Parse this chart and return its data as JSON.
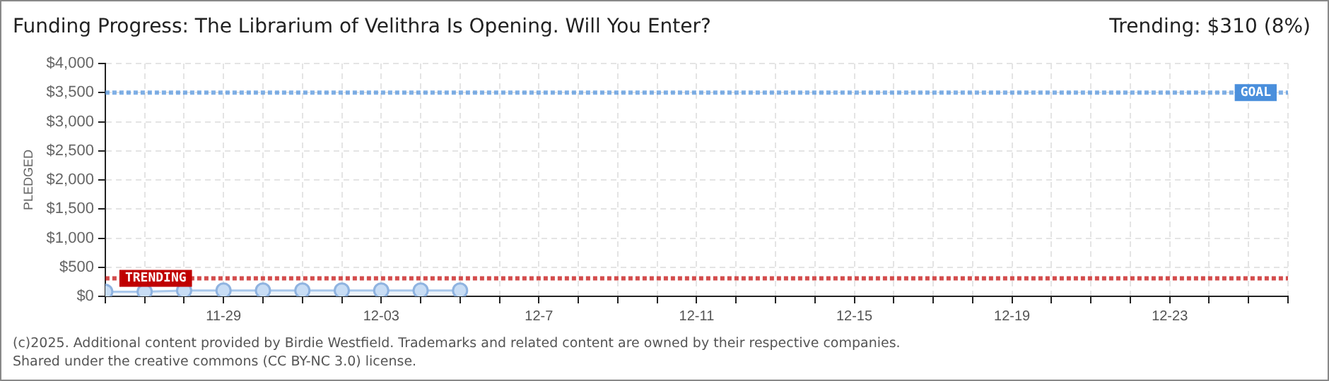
{
  "chart_data": {
    "type": "area",
    "title": "Funding Progress: The Librarium of Velithra Is Opening. Will You Enter?",
    "subtitle": "Trending: $310 (8%)",
    "ylabel": "PLEDGED",
    "annotations": [
      "(c)2025. Additional content provided by Birdie Westfield. Trademarks and related content are owned by their respective companies.",
      "Shared under the creative commons (CC BY-NC 3.0) license."
    ],
    "x": [
      "--11-26",
      "--11-27",
      "--11-28",
      "--11-29",
      "--11-30",
      "--12-01",
      "--12-02",
      "--12-03",
      "--12-04",
      "--12-05"
    ],
    "series": [
      {
        "color": "#a9c8ec",
        "values": [
          80,
          80,
          100,
          100,
          100,
          100,
          100,
          100,
          100,
          100
        ]
      }
    ],
    "xlim": [
      "--11-26",
      "--12-26"
    ],
    "xticks": [
      {
        "value": "--11-26",
        "label": null
      },
      {
        "value": "--11-27",
        "label": null
      },
      {
        "value": "--11-28",
        "label": null
      },
      {
        "value": "--11-29",
        "label": "11-29"
      },
      {
        "value": "--11-30",
        "label": null
      },
      {
        "value": "--12-01",
        "label": null
      },
      {
        "value": "--12-02",
        "label": null
      },
      {
        "value": "--12-03",
        "label": "12-03"
      },
      {
        "value": "--12-04",
        "label": null
      },
      {
        "value": "--12-05",
        "label": null
      },
      {
        "value": "--12-06",
        "label": null
      },
      {
        "value": "--12-07",
        "label": "12-7"
      },
      {
        "value": "--12-08",
        "label": null
      },
      {
        "value": "--12-09",
        "label": null
      },
      {
        "value": "--12-10",
        "label": null
      },
      {
        "value": "--12-11",
        "label": "12-11"
      },
      {
        "value": "--12-12",
        "label": null
      },
      {
        "value": "--12-13",
        "label": null
      },
      {
        "value": "--12-14",
        "label": null
      },
      {
        "value": "--12-15",
        "label": "12-15"
      },
      {
        "value": "--12-16",
        "label": null
      },
      {
        "value": "--12-17",
        "label": null
      },
      {
        "value": "--12-18",
        "label": null
      },
      {
        "value": "--12-19",
        "label": "12-19"
      },
      {
        "value": "--12-20",
        "label": null
      },
      {
        "value": "--12-21",
        "label": null
      },
      {
        "value": "--12-22",
        "label": null
      },
      {
        "value": "--12-23",
        "label": "12-23"
      },
      {
        "value": "--12-24",
        "label": null
      },
      {
        "value": "--12-25",
        "label": null
      },
      {
        "value": "--12-26",
        "label": null
      }
    ],
    "ylim": [
      0,
      4000
    ],
    "yticks": [
      {
        "value": 0,
        "label": "$0"
      },
      {
        "value": 500,
        "label": "$500"
      },
      {
        "value": 1000,
        "label": "$1,000"
      },
      {
        "value": 1500,
        "label": "$1,500"
      },
      {
        "value": 2000,
        "label": "$2,000"
      },
      {
        "value": 2500,
        "label": "$2,500"
      },
      {
        "value": 3000,
        "label": "$3,000"
      },
      {
        "value": 3500,
        "label": "$3,500"
      },
      {
        "value": 4000,
        "label": "$4,000"
      }
    ],
    "ref_lines": [
      {
        "axis": "y",
        "value": 3500,
        "label": "GOAL",
        "color": "#4a8fdc",
        "line_style": "dotted"
      },
      {
        "axis": "y",
        "value": 310,
        "label": "TRENDING",
        "color": "#c00000",
        "line_style": "dotted"
      }
    ],
    "grid": true,
    "legend": false,
    "marker": "circle",
    "line_style": "solid"
  }
}
